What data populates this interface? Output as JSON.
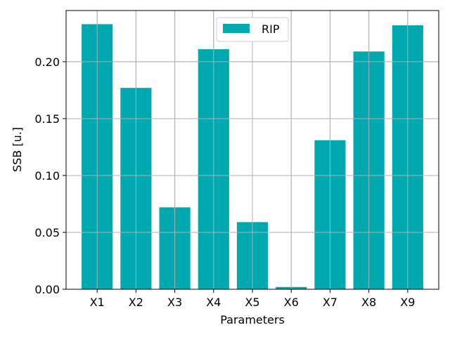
{
  "chart_data": {
    "type": "bar",
    "categories": [
      "X1",
      "X2",
      "X3",
      "X4",
      "X5",
      "X6",
      "X7",
      "X8",
      "X9"
    ],
    "series": [
      {
        "name": "RIP",
        "values": [
          0.233,
          0.177,
          0.072,
          0.211,
          0.059,
          0.002,
          0.131,
          0.209,
          0.232
        ]
      }
    ],
    "xlabel": "Parameters",
    "ylabel": "SSB [u.]",
    "ylim": [
      0,
      0.245
    ],
    "yticks": [
      0.0,
      0.05,
      0.1,
      0.15,
      0.2
    ],
    "ytick_labels": [
      "0.00",
      "0.05",
      "0.10",
      "0.15",
      "0.20"
    ],
    "grid": true,
    "legend_position": "top-center",
    "colors": {
      "bar": "#00a8b0",
      "grid": "#b0b0b0"
    }
  }
}
